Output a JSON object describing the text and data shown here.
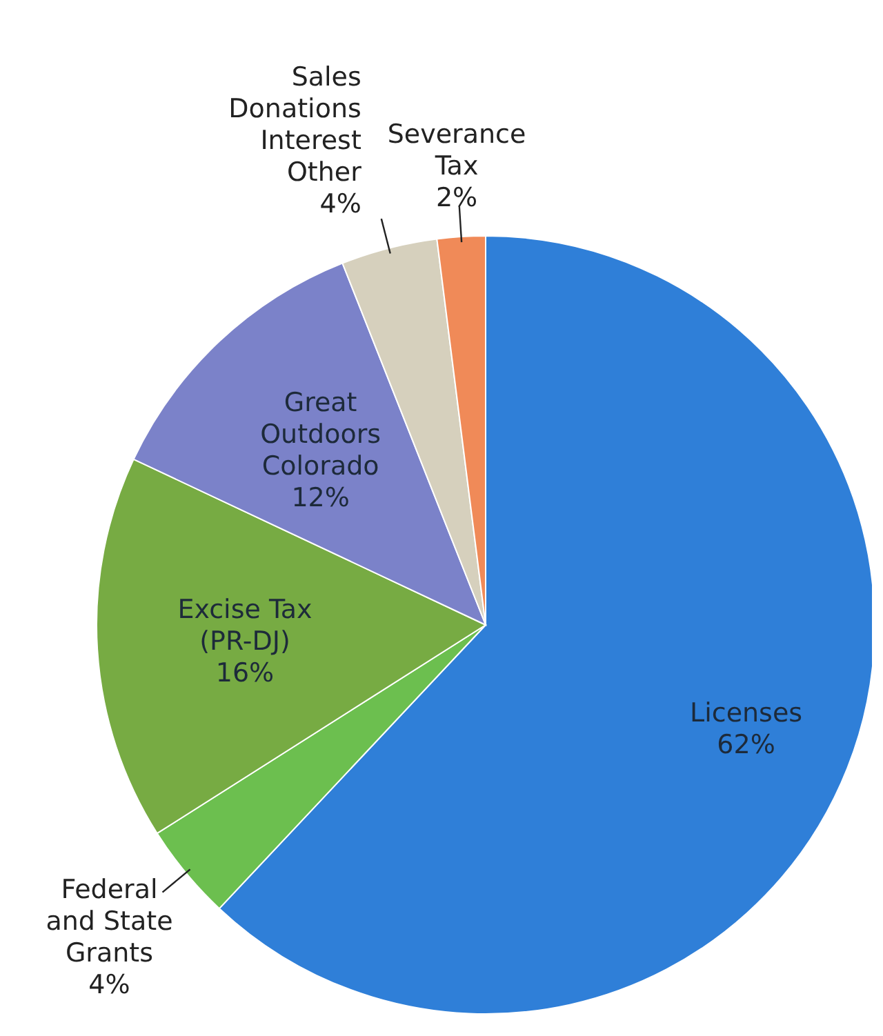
{
  "chart_data": {
    "type": "pie",
    "categories": [
      "Licenses",
      "Federal and State Grants",
      "Excise Tax (PR-DJ)",
      "Great Outdoors Colorado",
      "Sales Donations Interest Other",
      "Severance Tax"
    ],
    "values": [
      62,
      4,
      16,
      12,
      4,
      2
    ],
    "value_labels": [
      "62%",
      "4%",
      "16%",
      "12%",
      "4%",
      "2%"
    ],
    "colors": [
      "#2f7fd8",
      "#6cbf4f",
      "#77ab43",
      "#7b82c9",
      "#d6d0bd",
      "#f08a58"
    ]
  }
}
